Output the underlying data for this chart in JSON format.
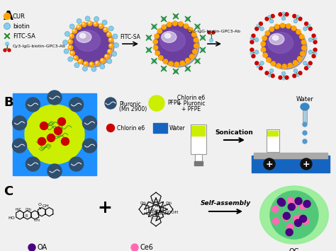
{
  "bg_color": "#f0f0f0",
  "panel_A": {
    "label": "A",
    "sphere_color": "#6B3FA0",
    "sphere_highlight": "#C8A8E8",
    "sphere_inner_highlight": "#E8E0F0",
    "cur_color": "#FFA500",
    "biotin_color": "#87CEEB",
    "fitcsa_color": "#228B22",
    "ab_color": "#4169E1",
    "ab_red_color": "#CC0000",
    "arrow1_label": "FITC-SA",
    "arrow2_label": "Cy3-IgG-biotin-GPC3-Ab"
  },
  "panel_B": {
    "label": "B",
    "bg_color": "#1E90FF",
    "pluronic_color": "#2F4F6F",
    "pfpe_color": "#CCEE00",
    "chlorin_color": "#CC0000",
    "water_color": "#1565C0",
    "sonication_label": "Sonication",
    "chlorin_label": "Chlorin e6\n+ Pluronic\n+ PFPE",
    "water_label": "Water"
  },
  "panel_C": {
    "label": "C",
    "arrow_label": "Self-assembly",
    "oa_label": "OA",
    "oa_color": "#4B0082",
    "ce6_label": "Ce6",
    "ce6_color": "#FF69B4",
    "oc_label": "OC",
    "oc_outer_color": "#90EE90",
    "oc_inner_color": "#50C878"
  }
}
